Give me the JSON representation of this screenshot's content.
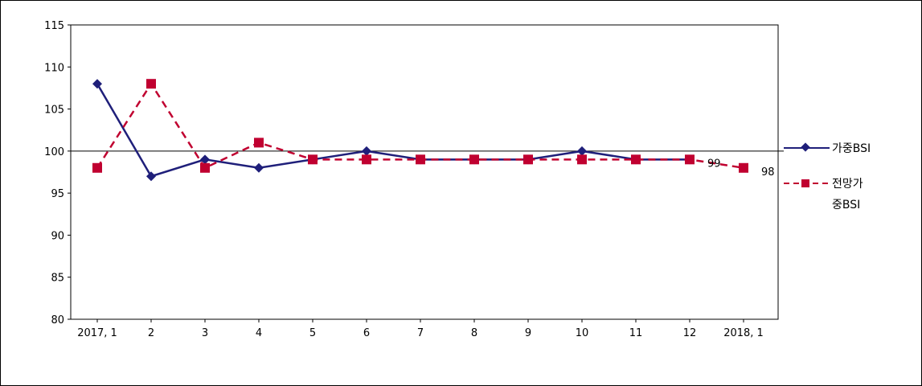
{
  "chart_data": {
    "type": "line",
    "categories": [
      "2017, 1",
      "2",
      "3",
      "4",
      "5",
      "6",
      "7",
      "8",
      "9",
      "10",
      "11",
      "12",
      "2018, 1"
    ],
    "ylim": [
      80,
      115
    ],
    "yticks": [
      "80",
      "85",
      "90",
      "95",
      "100",
      "105",
      "110",
      "115"
    ],
    "reference_line": 100,
    "grid": false,
    "legend_position": "right",
    "series": [
      {
        "name": "가중BSI",
        "color": "#1f1f7a",
        "marker": "diamond",
        "line": "solid",
        "values": [
          108,
          97,
          99,
          98,
          99,
          100,
          99,
          99,
          99,
          100,
          99,
          99,
          null
        ]
      },
      {
        "name": "전망가중BSI",
        "legend_lines": [
          "전망가",
          "중BSI"
        ],
        "color": "#c00030",
        "marker": "square",
        "line": "dashed",
        "values": [
          98,
          108,
          98,
          101,
          99,
          99,
          99,
          99,
          99,
          99,
          99,
          99,
          98
        ]
      }
    ],
    "annotations": [
      {
        "category_index": 11,
        "text": "99"
      },
      {
        "category_index": 12,
        "text": "98"
      }
    ]
  }
}
